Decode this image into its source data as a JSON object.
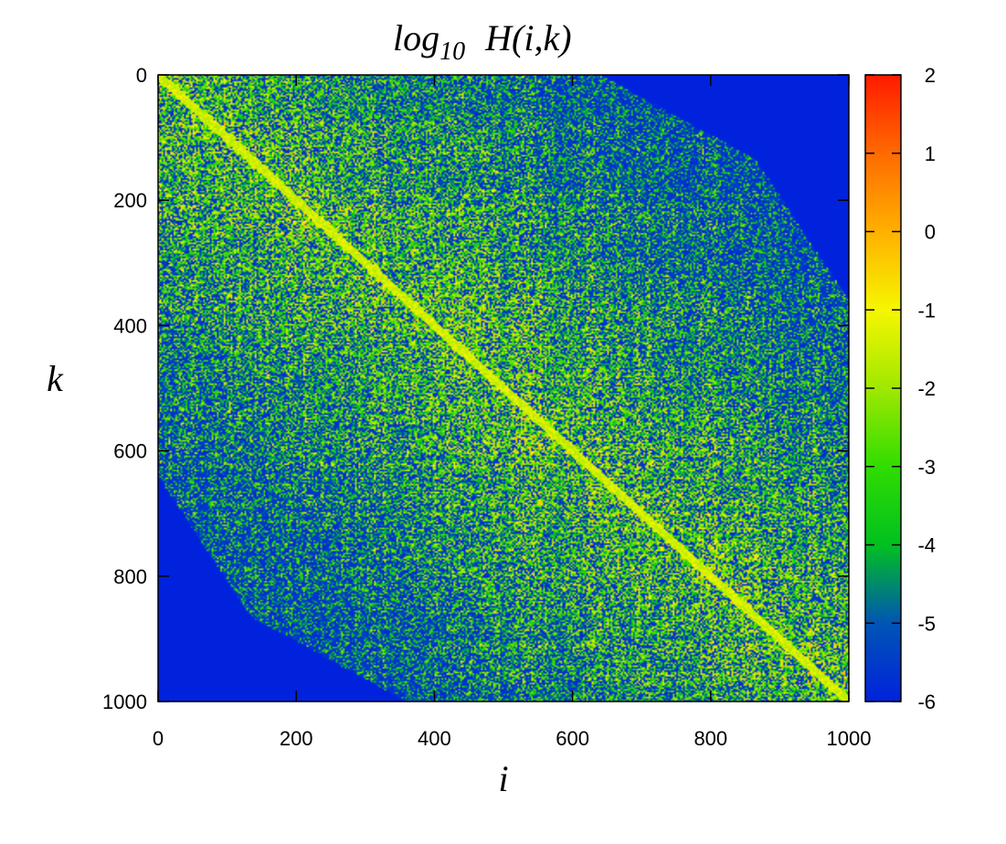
{
  "chart_data": {
    "type": "heatmap",
    "title_prefix": "log",
    "title_subscript": "10",
    "title_expr": "H(i,k)",
    "xlabel": "i",
    "ylabel": "k",
    "xlim": [
      0,
      1000
    ],
    "ylim": [
      1000,
      0
    ],
    "x_ticks": [
      0,
      200,
      400,
      600,
      800,
      1000
    ],
    "y_ticks": [
      0,
      200,
      400,
      600,
      800,
      1000
    ],
    "color_range": [
      -6,
      2
    ],
    "colorbar_ticks": [
      2,
      1,
      0,
      -1,
      -2,
      -3,
      -4,
      -5,
      -6
    ],
    "colormap": [
      {
        "value": -6,
        "color": "#0022dd"
      },
      {
        "value": -5,
        "color": "#0055b5"
      },
      {
        "value": -4,
        "color": "#00c020"
      },
      {
        "value": -3,
        "color": "#30dd00"
      },
      {
        "value": -2,
        "color": "#a0e800"
      },
      {
        "value": -1,
        "color": "#f6f600"
      },
      {
        "value": 0,
        "color": "#ffb000"
      },
      {
        "value": 1,
        "color": "#ff6a00"
      },
      {
        "value": 2,
        "color": "#ff1a00"
      }
    ],
    "matrix_size": 1000,
    "background_value": -6,
    "description_band": "nonzero band around anti-diagonal; zero (-6) in top-right and bottom-left corners"
  }
}
